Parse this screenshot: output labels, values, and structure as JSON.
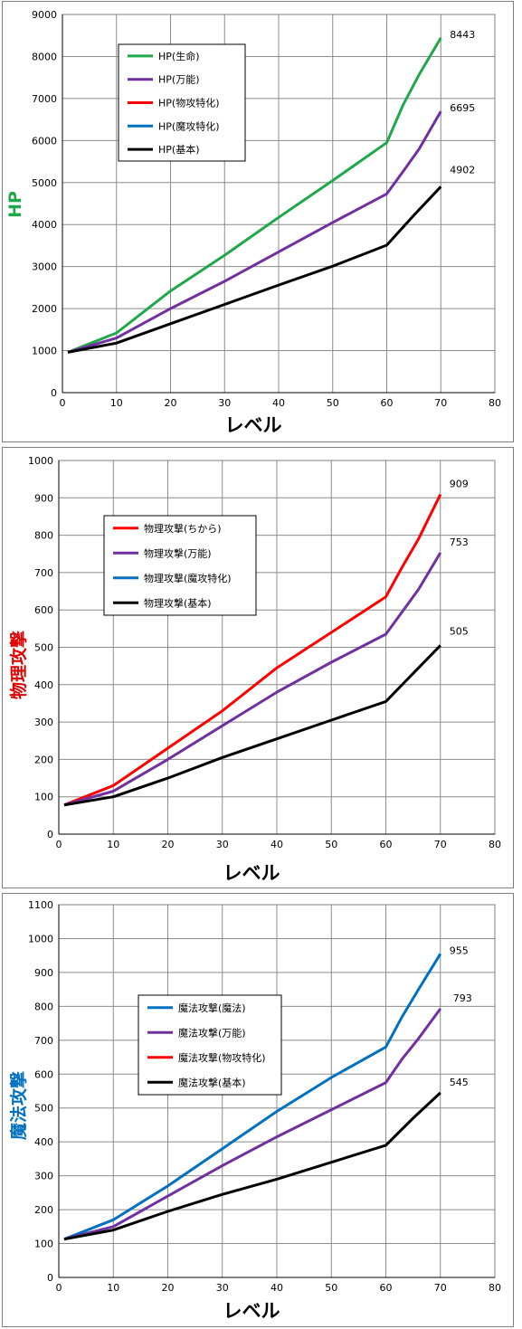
{
  "chart_data": [
    {
      "type": "line",
      "ylabel": "HP",
      "ylabel_color": "#1fa84a",
      "xlabel": "レベル",
      "xlim": [
        0,
        80
      ],
      "ylim": [
        0,
        9000
      ],
      "xticks": [
        0,
        10,
        20,
        30,
        40,
        50,
        60,
        70,
        80
      ],
      "yticks": [
        0,
        1000,
        2000,
        3000,
        4000,
        5000,
        6000,
        7000,
        8000,
        9000
      ],
      "grid": true,
      "legend_position": "top-left",
      "series": [
        {
          "name": "HP(生命)",
          "color": "#1fa84a",
          "x": [
            1,
            10,
            20,
            30,
            40,
            50,
            60,
            63,
            66,
            70
          ],
          "values": [
            960,
            1420,
            2420,
            3270,
            4170,
            5050,
            5950,
            6840,
            7570,
            8443
          ]
        },
        {
          "name": "HP(万能)",
          "color": "#7030a0",
          "x": [
            1,
            10,
            20,
            30,
            40,
            50,
            60,
            63,
            66,
            70
          ],
          "values": [
            960,
            1300,
            2000,
            2650,
            3350,
            4050,
            4730,
            5260,
            5800,
            6695
          ]
        },
        {
          "name": "HP(物攻特化)",
          "color": "#ff0000",
          "x": [],
          "values": []
        },
        {
          "name": "HP(魔攻特化)",
          "color": "#0070c0",
          "x": [],
          "values": []
        },
        {
          "name": "HP(基本)",
          "color": "#000000",
          "x": [
            1,
            10,
            20,
            30,
            40,
            50,
            60,
            65,
            70
          ],
          "values": [
            960,
            1180,
            1640,
            2100,
            2560,
            3010,
            3510,
            4220,
            4902
          ]
        }
      ],
      "end_labels": [
        "8443",
        "6695",
        "4902"
      ]
    },
    {
      "type": "line",
      "ylabel": "物理攻撃",
      "ylabel_color": "#e00000",
      "xlabel": "レベル",
      "xlim": [
        0,
        80
      ],
      "ylim": [
        0,
        1000
      ],
      "xticks": [
        0,
        10,
        20,
        30,
        40,
        50,
        60,
        70,
        80
      ],
      "yticks": [
        0,
        100,
        200,
        300,
        400,
        500,
        600,
        700,
        800,
        900,
        1000
      ],
      "grid": true,
      "legend_position": "top-left",
      "series": [
        {
          "name": "物理攻撃(ちから)",
          "color": "#ff0000",
          "x": [
            1,
            10,
            20,
            30,
            40,
            50,
            60,
            63,
            66,
            70
          ],
          "values": [
            78,
            130,
            230,
            330,
            445,
            540,
            635,
            715,
            790,
            909
          ]
        },
        {
          "name": "物理攻撃(万能)",
          "color": "#7030a0",
          "x": [
            1,
            10,
            20,
            30,
            40,
            50,
            60,
            63,
            66,
            70
          ],
          "values": [
            78,
            115,
            200,
            290,
            380,
            460,
            535,
            595,
            655,
            753
          ]
        },
        {
          "name": "物理攻撃(魔攻特化)",
          "color": "#0070c0",
          "x": [],
          "values": []
        },
        {
          "name": "物理攻撃(基本)",
          "color": "#000000",
          "x": [
            1,
            10,
            20,
            30,
            40,
            50,
            60,
            65,
            70
          ],
          "values": [
            78,
            100,
            150,
            205,
            255,
            305,
            355,
            430,
            505
          ]
        }
      ],
      "end_labels": [
        "909",
        "753",
        "505"
      ]
    },
    {
      "type": "line",
      "ylabel": "魔法攻撃",
      "ylabel_color": "#0070c0",
      "xlabel": "レベル",
      "xlim": [
        0,
        80
      ],
      "ylim": [
        0,
        1100
      ],
      "xticks": [
        0,
        10,
        20,
        30,
        40,
        50,
        60,
        70,
        80
      ],
      "yticks": [
        0,
        100,
        200,
        300,
        400,
        500,
        600,
        700,
        800,
        900,
        1000,
        1100
      ],
      "grid": true,
      "legend_position": "top-left",
      "series": [
        {
          "name": "魔法攻撃(魔法)",
          "color": "#0070c0",
          "x": [
            1,
            10,
            20,
            30,
            40,
            50,
            60,
            63,
            66,
            70
          ],
          "values": [
            113,
            170,
            270,
            380,
            490,
            590,
            680,
            770,
            850,
            955
          ]
        },
        {
          "name": "魔法攻撃(万能)",
          "color": "#7030a0",
          "x": [
            1,
            10,
            20,
            30,
            40,
            50,
            60,
            63,
            66,
            70
          ],
          "values": [
            113,
            150,
            240,
            330,
            415,
            495,
            575,
            645,
            705,
            793
          ]
        },
        {
          "name": "魔法攻撃(物攻特化)",
          "color": "#ff0000",
          "x": [],
          "values": []
        },
        {
          "name": "魔法攻撃(基本)",
          "color": "#000000",
          "x": [
            1,
            10,
            20,
            30,
            40,
            50,
            60,
            65,
            70
          ],
          "values": [
            113,
            140,
            195,
            245,
            290,
            340,
            390,
            470,
            545
          ]
        }
      ],
      "end_labels": [
        "955",
        "793",
        "545"
      ]
    }
  ]
}
